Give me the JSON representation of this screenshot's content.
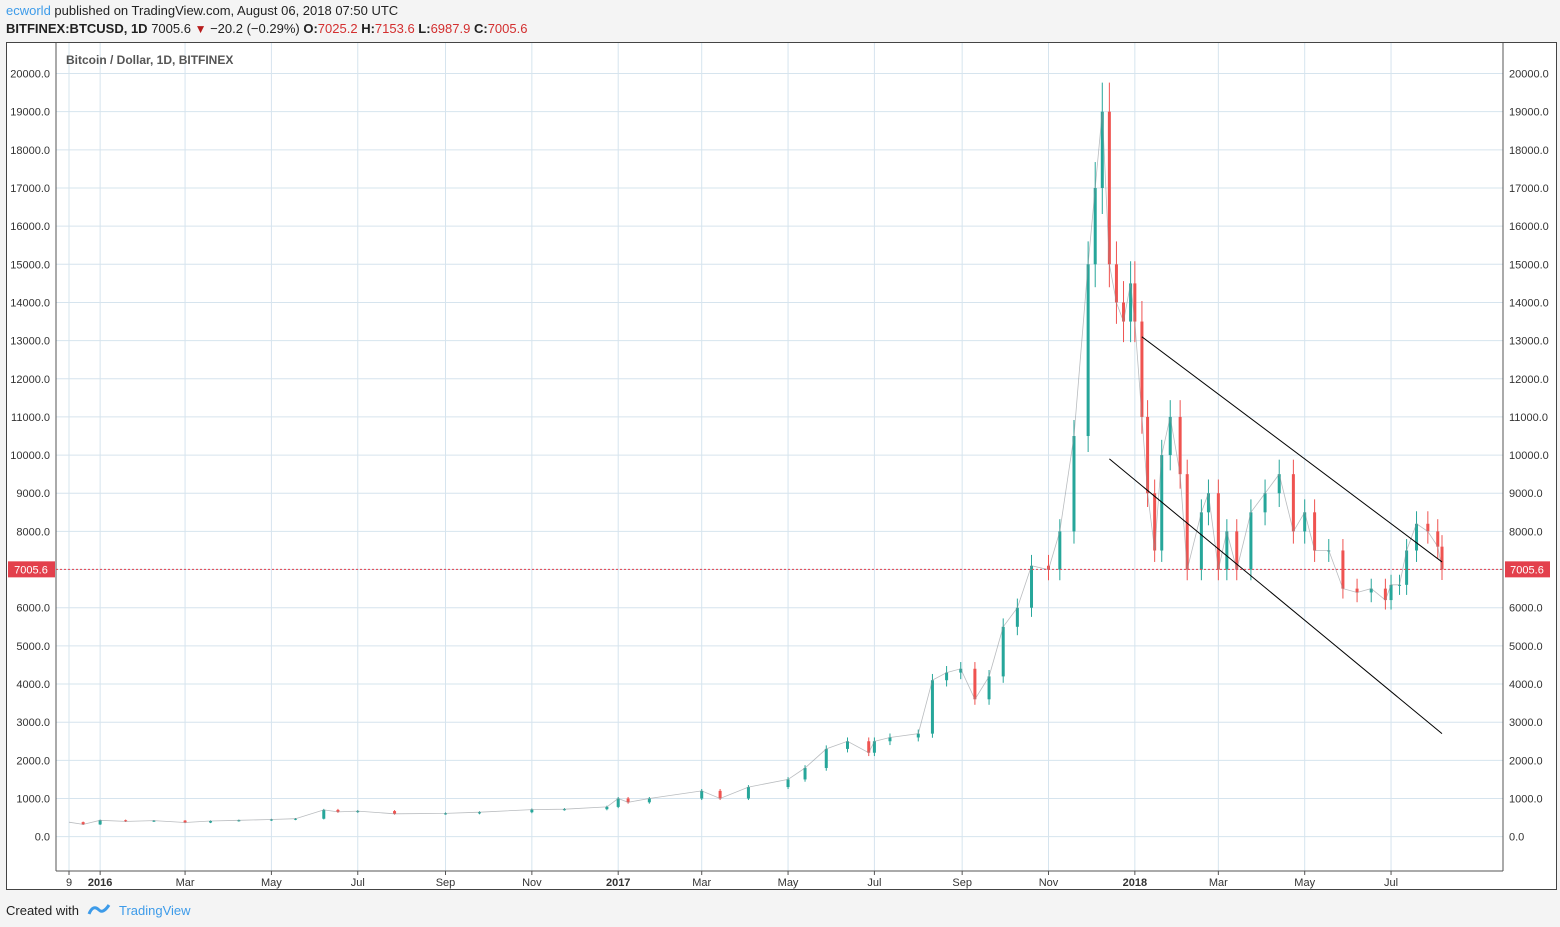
{
  "header": {
    "author": "ecworld",
    "published": "published on TradingView.com, August 06, 2018 07:50 UTC",
    "symbol": "BITFINEX:BTCUSD, 1D",
    "last": "7005.6",
    "change": "−20.2 (−0.29%)",
    "o_label": "O:",
    "o_value": "7025.2",
    "h_label": "H:",
    "h_value": "7153.6",
    "l_label": "L:",
    "l_value": "6987.9",
    "c_label": "C:",
    "c_value": "7005.6"
  },
  "footer": {
    "created_with": "Created with",
    "brand": "TradingView"
  },
  "chart_data": {
    "type": "line",
    "title": "Bitcoin / Dollar, 1D, BITFINEX",
    "y_ticks": [
      "0.0",
      "1000.0",
      "2000.0",
      "3000.0",
      "4000.0",
      "5000.0",
      "6000.0",
      "7000.0",
      "8000.0",
      "9000.0",
      "10000.0",
      "11000.0",
      "12000.0",
      "13000.0",
      "14000.0",
      "15000.0",
      "16000.0",
      "17000.0",
      "18000.0",
      "19000.0",
      "20000.0"
    ],
    "ylim": [
      -900,
      20800
    ],
    "x_ticks": [
      {
        "label": "9",
        "bold": false,
        "t": 0
      },
      {
        "label": "2016",
        "bold": true,
        "t": 22
      },
      {
        "label": "Mar",
        "bold": false,
        "t": 82
      },
      {
        "label": "May",
        "bold": false,
        "t": 143
      },
      {
        "label": "Jul",
        "bold": false,
        "t": 204
      },
      {
        "label": "Sep",
        "bold": false,
        "t": 266
      },
      {
        "label": "Nov",
        "bold": false,
        "t": 327
      },
      {
        "label": "2017",
        "bold": true,
        "t": 388
      },
      {
        "label": "Mar",
        "bold": false,
        "t": 447
      },
      {
        "label": "May",
        "bold": false,
        "t": 508
      },
      {
        "label": "Jul",
        "bold": false,
        "t": 569
      },
      {
        "label": "Sep",
        "bold": false,
        "t": 631
      },
      {
        "label": "Nov",
        "bold": false,
        "t": 692
      },
      {
        "label": "2018",
        "bold": true,
        "t": 753
      },
      {
        "label": "Mar",
        "bold": false,
        "t": 812
      },
      {
        "label": "May",
        "bold": false,
        "t": 873
      },
      {
        "label": "Jul",
        "bold": false,
        "t": 934
      }
    ],
    "price_series": {
      "name": "BTCUSD",
      "x_day": [
        0,
        10,
        22,
        40,
        60,
        82,
        100,
        120,
        143,
        160,
        180,
        190,
        204,
        230,
        266,
        290,
        327,
        350,
        380,
        388,
        395,
        410,
        447,
        460,
        480,
        508,
        520,
        535,
        550,
        565,
        569,
        580,
        600,
        610,
        620,
        630,
        640,
        650,
        660,
        670,
        680,
        692,
        700,
        710,
        720,
        725,
        730,
        735,
        740,
        745,
        750,
        753,
        758,
        762,
        767,
        772,
        778,
        785,
        790,
        800,
        805,
        812,
        818,
        825,
        835,
        845,
        855,
        865,
        873,
        880,
        890,
        900,
        910,
        920,
        930,
        934,
        940,
        945,
        952,
        960,
        967,
        970
      ],
      "close": [
        380,
        320,
        430,
        400,
        420,
        370,
        410,
        430,
        450,
        470,
        700,
        650,
        670,
        600,
        610,
        640,
        710,
        720,
        780,
        1000,
        900,
        1000,
        1200,
        1000,
        1300,
        1500,
        1800,
        2300,
        2500,
        2200,
        2500,
        2600,
        2700,
        4100,
        4300,
        4400,
        3600,
        4200,
        5500,
        6000,
        7100,
        7000,
        8000,
        10500,
        15000,
        17000,
        19000,
        15000,
        14000,
        13500,
        14500,
        13500,
        11000,
        9000,
        7500,
        10000,
        11000,
        9500,
        7000,
        8500,
        9000,
        7000,
        8000,
        7000,
        8500,
        9000,
        9500,
        8000,
        8500,
        7500,
        7500,
        6500,
        6400,
        6500,
        6200,
        6600,
        6600,
        7500,
        8200,
        8000,
        7600,
        7005.6
      ]
    },
    "trendlines": [
      {
        "name": "upper-channel",
        "x1": 758,
        "y1": 13100,
        "x2": 970,
        "y2": 7200
      },
      {
        "name": "lower-channel",
        "x1": 735,
        "y1": 9900,
        "x2": 970,
        "y2": 2700
      }
    ],
    "last_price": 7005.6,
    "last_price_label": "7005.6",
    "colors": {
      "up": "#26a69a",
      "down": "#ef5350",
      "grid": "#d6e4ee",
      "line": "#000000",
      "last": "#e3404c"
    }
  }
}
